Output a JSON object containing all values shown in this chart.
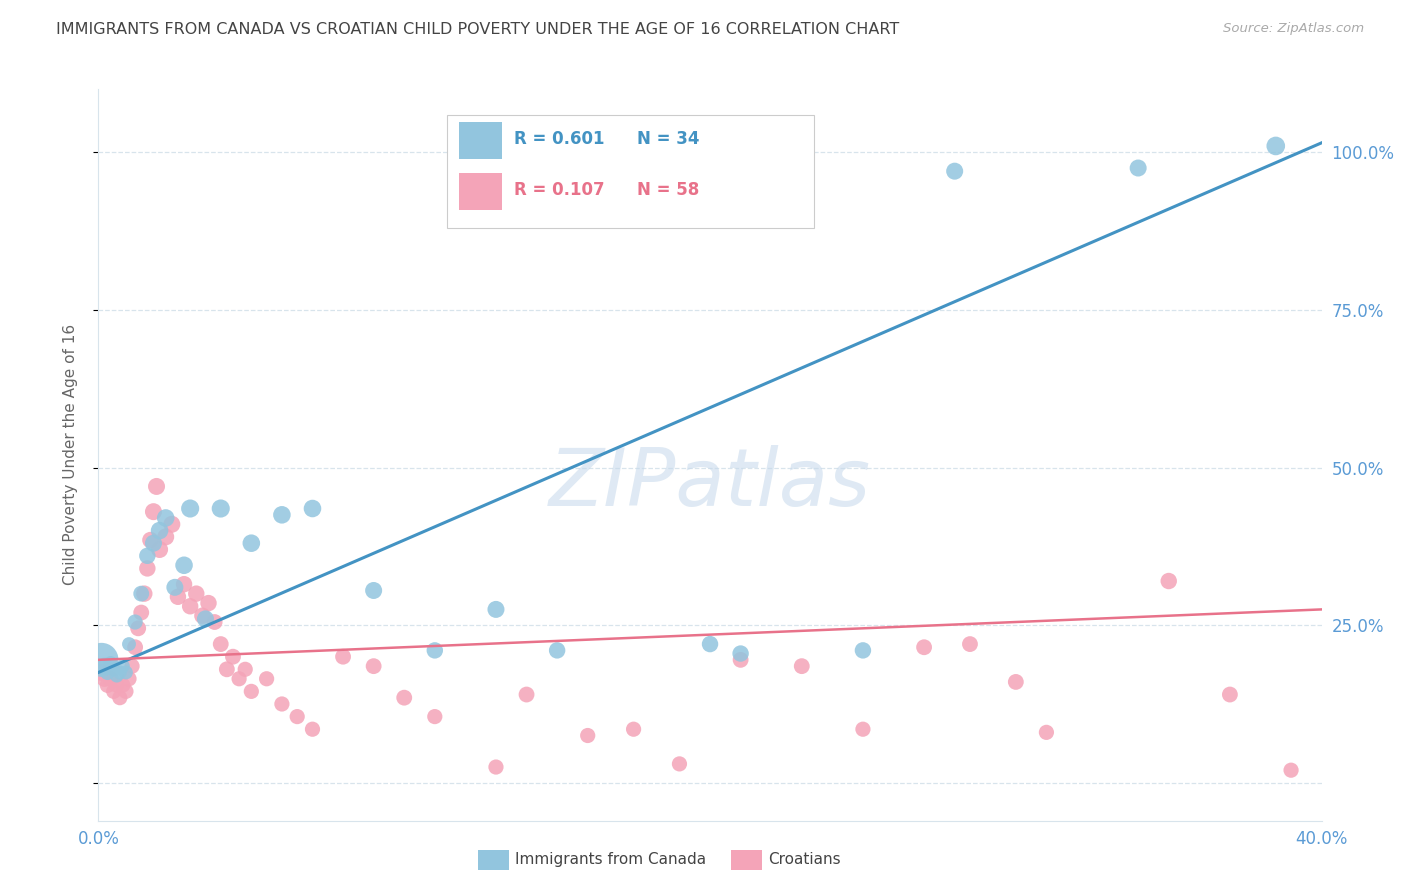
{
  "title": "IMMIGRANTS FROM CANADA VS CROATIAN CHILD POVERTY UNDER THE AGE OF 16 CORRELATION CHART",
  "source": "Source: ZipAtlas.com",
  "ylabel": "Child Poverty Under the Age of 16",
  "watermark": "ZIPatlas",
  "blue_label": "Immigrants from Canada",
  "pink_label": "Croatians",
  "blue_R": "R = 0.601",
  "blue_N": "N = 34",
  "pink_R": "R = 0.107",
  "pink_N": "N = 58",
  "blue_color": "#92c5de",
  "pink_color": "#f4a4b8",
  "blue_line_color": "#4393c3",
  "pink_line_color": "#e8728a",
  "title_color": "#444444",
  "axis_label_color": "#5b9bd5",
  "source_color": "#aaaaaa",
  "background_color": "#ffffff",
  "grid_color": "#d8e4ec",
  "xlim": [
    0.0,
    0.4
  ],
  "ylim": [
    -0.06,
    1.1
  ],
  "yticks": [
    0.0,
    0.25,
    0.5,
    0.75,
    1.0
  ],
  "ytick_labels": [
    "",
    "25.0%",
    "50.0%",
    "75.0%",
    "100.0%"
  ],
  "blue_scatter_x": [
    0.001,
    0.002,
    0.003,
    0.004,
    0.005,
    0.006,
    0.007,
    0.008,
    0.009,
    0.01,
    0.012,
    0.014,
    0.016,
    0.018,
    0.02,
    0.022,
    0.025,
    0.028,
    0.03,
    0.035,
    0.04,
    0.05,
    0.06,
    0.07,
    0.09,
    0.11,
    0.13,
    0.15,
    0.2,
    0.21,
    0.25,
    0.28,
    0.34,
    0.385
  ],
  "blue_scatter_y": [
    0.195,
    0.185,
    0.175,
    0.19,
    0.18,
    0.17,
    0.175,
    0.185,
    0.175,
    0.22,
    0.255,
    0.3,
    0.36,
    0.38,
    0.4,
    0.42,
    0.31,
    0.345,
    0.435,
    0.26,
    0.435,
    0.38,
    0.425,
    0.435,
    0.305,
    0.21,
    0.275,
    0.21,
    0.22,
    0.205,
    0.21,
    0.97,
    0.975,
    1.01
  ],
  "blue_scatter_sizes": [
    600,
    150,
    120,
    100,
    100,
    100,
    100,
    100,
    100,
    100,
    120,
    130,
    140,
    150,
    160,
    160,
    150,
    160,
    170,
    150,
    170,
    160,
    160,
    160,
    150,
    140,
    150,
    140,
    140,
    140,
    140,
    150,
    150,
    180
  ],
  "pink_scatter_x": [
    0.001,
    0.002,
    0.003,
    0.004,
    0.005,
    0.006,
    0.007,
    0.008,
    0.009,
    0.01,
    0.011,
    0.012,
    0.013,
    0.014,
    0.015,
    0.016,
    0.017,
    0.018,
    0.019,
    0.02,
    0.022,
    0.024,
    0.026,
    0.028,
    0.03,
    0.032,
    0.034,
    0.036,
    0.038,
    0.04,
    0.042,
    0.044,
    0.046,
    0.048,
    0.05,
    0.055,
    0.06,
    0.065,
    0.07,
    0.08,
    0.09,
    0.1,
    0.11,
    0.13,
    0.14,
    0.16,
    0.175,
    0.19,
    0.21,
    0.23,
    0.25,
    0.27,
    0.285,
    0.3,
    0.31,
    0.35,
    0.37,
    0.39
  ],
  "pink_scatter_y": [
    0.175,
    0.165,
    0.155,
    0.165,
    0.145,
    0.155,
    0.135,
    0.155,
    0.145,
    0.165,
    0.185,
    0.215,
    0.245,
    0.27,
    0.3,
    0.34,
    0.385,
    0.43,
    0.47,
    0.37,
    0.39,
    0.41,
    0.295,
    0.315,
    0.28,
    0.3,
    0.265,
    0.285,
    0.255,
    0.22,
    0.18,
    0.2,
    0.165,
    0.18,
    0.145,
    0.165,
    0.125,
    0.105,
    0.085,
    0.2,
    0.185,
    0.135,
    0.105,
    0.025,
    0.14,
    0.075,
    0.085,
    0.03,
    0.195,
    0.185,
    0.085,
    0.215,
    0.22,
    0.16,
    0.08,
    0.32,
    0.14,
    0.02
  ],
  "pink_scatter_sizes": [
    150,
    140,
    130,
    130,
    120,
    120,
    120,
    120,
    120,
    120,
    120,
    130,
    130,
    130,
    140,
    140,
    140,
    150,
    150,
    150,
    150,
    150,
    140,
    140,
    140,
    140,
    140,
    140,
    130,
    130,
    130,
    130,
    120,
    120,
    120,
    120,
    120,
    120,
    120,
    130,
    130,
    130,
    120,
    120,
    130,
    120,
    120,
    120,
    130,
    130,
    120,
    130,
    130,
    130,
    120,
    140,
    130,
    120
  ],
  "blue_line_x0": 0.0,
  "blue_line_y0": 0.175,
  "blue_line_x1": 0.4,
  "blue_line_y1": 1.015,
  "pink_line_x0": 0.0,
  "pink_line_y0": 0.195,
  "pink_line_x1": 0.4,
  "pink_line_y1": 0.275
}
